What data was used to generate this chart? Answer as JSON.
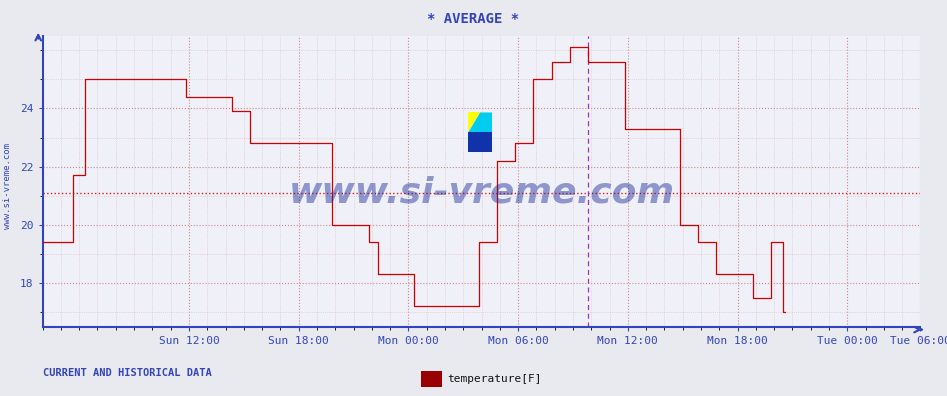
{
  "title": "* AVERAGE *",
  "ylabel_rotated": "www.si-vreme.com",
  "xlabel_labels": [
    "Sun 12:00",
    "Sun 18:00",
    "Mon 00:00",
    "Mon 06:00",
    "Mon 12:00",
    "Mon 18:00",
    "Tue 00:00",
    "Tue 06:00"
  ],
  "footer_left": "CURRENT AND HISTORICAL DATA",
  "legend_label": "temperature[F]",
  "legend_color": "#990000",
  "bg_color": "#e8eaf0",
  "plot_bg_color": "#f0f0f8",
  "line_color": "#cc0000",
  "axis_color": "#3344bb",
  "grid_major_color": "#cc8888",
  "grid_minor_color": "#ddbbbb",
  "dashed_hline_color": "#cc2222",
  "dashed_vline_color": "#9933bb",
  "dashed_hline_y": 21.1,
  "ylim": [
    16.5,
    26.5
  ],
  "yticks": [
    18,
    20,
    22,
    24
  ],
  "total_points": 576,
  "x_tick_positions": [
    96,
    168,
    240,
    312,
    384,
    456,
    528,
    576
  ],
  "dashed_vline_pos": 358,
  "watermark": "www.si-vreme.com",
  "watermark_color": "#1a2a99",
  "logo_colors": [
    "#ffff00",
    "#00ccff",
    "#1a3399"
  ],
  "temperature_data": [
    19.4,
    19.4,
    19.4,
    19.4,
    19.4,
    19.4,
    19.4,
    19.4,
    19.4,
    19.4,
    19.4,
    19.4,
    19.4,
    19.4,
    19.4,
    19.4,
    19.4,
    19.4,
    19.4,
    19.4,
    21.7,
    21.7,
    21.7,
    21.7,
    21.7,
    21.7,
    21.7,
    21.7,
    25.0,
    25.0,
    25.0,
    25.0,
    25.0,
    25.0,
    25.0,
    25.0,
    25.0,
    25.0,
    25.0,
    25.0,
    25.0,
    25.0,
    25.0,
    25.0,
    25.0,
    25.0,
    25.0,
    25.0,
    25.0,
    25.0,
    25.0,
    25.0,
    25.0,
    25.0,
    25.0,
    25.0,
    25.0,
    25.0,
    25.0,
    25.0,
    25.0,
    25.0,
    25.0,
    25.0,
    25.0,
    25.0,
    25.0,
    25.0,
    25.0,
    25.0,
    25.0,
    25.0,
    25.0,
    25.0,
    25.0,
    25.0,
    25.0,
    25.0,
    25.0,
    25.0,
    25.0,
    25.0,
    25.0,
    25.0,
    25.0,
    25.0,
    25.0,
    25.0,
    25.0,
    25.0,
    25.0,
    25.0,
    25.0,
    25.0,
    24.4,
    24.4,
    24.4,
    24.4,
    24.4,
    24.4,
    24.4,
    24.4,
    24.4,
    24.4,
    24.4,
    24.4,
    24.4,
    24.4,
    24.4,
    24.4,
    24.4,
    24.4,
    24.4,
    24.4,
    24.4,
    24.4,
    24.4,
    24.4,
    24.4,
    24.4,
    24.4,
    24.4,
    24.4,
    24.4,
    23.9,
    23.9,
    23.9,
    23.9,
    23.9,
    23.9,
    23.9,
    23.9,
    23.9,
    23.9,
    23.9,
    23.9,
    22.8,
    22.8,
    22.8,
    22.8,
    22.8,
    22.8,
    22.8,
    22.8,
    22.8,
    22.8,
    22.8,
    22.8,
    22.8,
    22.8,
    22.8,
    22.8,
    22.8,
    22.8,
    22.8,
    22.8,
    22.8,
    22.8,
    22.8,
    22.8,
    22.8,
    22.8,
    22.8,
    22.8,
    22.8,
    22.8,
    22.8,
    22.8,
    22.8,
    22.8,
    22.8,
    22.8,
    22.8,
    22.8,
    22.8,
    22.8,
    22.8,
    22.8,
    22.8,
    22.8,
    22.8,
    22.8,
    22.8,
    22.8,
    22.8,
    22.8,
    22.8,
    22.8,
    22.8,
    22.8,
    20.0,
    20.0,
    20.0,
    20.0,
    20.0,
    20.0,
    20.0,
    20.0,
    20.0,
    20.0,
    20.0,
    20.0,
    20.0,
    20.0,
    20.0,
    20.0,
    20.0,
    20.0,
    20.0,
    20.0,
    20.0,
    20.0,
    20.0,
    20.0,
    19.4,
    19.4,
    19.4,
    19.4,
    19.4,
    19.4,
    18.3,
    18.3,
    18.3,
    18.3,
    18.3,
    18.3,
    18.3,
    18.3,
    18.3,
    18.3,
    18.3,
    18.3,
    18.3,
    18.3,
    18.3,
    18.3,
    18.3,
    18.3,
    18.3,
    18.3,
    18.3,
    18.3,
    18.3,
    18.3,
    17.2,
    17.2,
    17.2,
    17.2,
    17.2,
    17.2,
    17.2,
    17.2,
    17.2,
    17.2,
    17.2,
    17.2,
    17.2,
    17.2,
    17.2,
    17.2,
    17.2,
    17.2,
    17.2,
    17.2,
    17.2,
    17.2,
    17.2,
    17.2,
    17.2,
    17.2,
    17.2,
    17.2,
    17.2,
    17.2,
    17.2,
    17.2,
    17.2,
    17.2,
    17.2,
    17.2,
    17.2,
    17.2,
    17.2,
    17.2,
    17.2,
    17.2,
    19.4,
    19.4,
    19.4,
    19.4,
    19.4,
    19.4,
    19.4,
    19.4,
    19.4,
    19.4,
    19.4,
    19.4,
    22.2,
    22.2,
    22.2,
    22.2,
    22.2,
    22.2,
    22.2,
    22.2,
    22.2,
    22.2,
    22.2,
    22.2,
    22.8,
    22.8,
    22.8,
    22.8,
    22.8,
    22.8,
    22.8,
    22.8,
    22.8,
    22.8,
    22.8,
    22.8,
    25.0,
    25.0,
    25.0,
    25.0,
    25.0,
    25.0,
    25.0,
    25.0,
    25.0,
    25.0,
    25.0,
    25.0,
    25.6,
    25.6,
    25.6,
    25.6,
    25.6,
    25.6,
    25.6,
    25.6,
    25.6,
    25.6,
    25.6,
    25.6,
    26.1,
    26.1,
    26.1,
    26.1,
    26.1,
    26.1,
    26.1,
    26.1,
    26.1,
    26.1,
    26.1,
    26.1,
    25.6,
    25.6,
    25.6,
    25.6,
    25.6,
    25.6,
    25.6,
    25.6,
    25.6,
    25.6,
    25.6,
    25.6,
    25.6,
    25.6,
    25.6,
    25.6,
    25.6,
    25.6,
    25.6,
    25.6,
    25.6,
    25.6,
    25.6,
    25.6,
    23.3,
    23.3,
    23.3,
    23.3,
    23.3,
    23.3,
    23.3,
    23.3,
    23.3,
    23.3,
    23.3,
    23.3,
    23.3,
    23.3,
    23.3,
    23.3,
    23.3,
    23.3,
    23.3,
    23.3,
    23.3,
    23.3,
    23.3,
    23.3,
    23.3,
    23.3,
    23.3,
    23.3,
    23.3,
    23.3,
    23.3,
    23.3,
    23.3,
    23.3,
    23.3,
    23.3,
    20.0,
    20.0,
    20.0,
    20.0,
    20.0,
    20.0,
    20.0,
    20.0,
    20.0,
    20.0,
    20.0,
    20.0,
    19.4,
    19.4,
    19.4,
    19.4,
    19.4,
    19.4,
    19.4,
    19.4,
    19.4,
    19.4,
    19.4,
    19.4,
    18.3,
    18.3,
    18.3,
    18.3,
    18.3,
    18.3,
    18.3,
    18.3,
    18.3,
    18.3,
    18.3,
    18.3,
    18.3,
    18.3,
    18.3,
    18.3,
    18.3,
    18.3,
    18.3,
    18.3,
    18.3,
    18.3,
    18.3,
    18.3,
    17.5,
    17.5,
    17.5,
    17.5,
    17.5,
    17.5,
    17.5,
    17.5,
    17.5,
    17.5,
    17.5,
    17.5,
    19.4,
    19.4,
    19.4,
    19.4,
    19.4,
    19.4,
    19.4,
    19.4,
    17.0,
    17.0
  ]
}
